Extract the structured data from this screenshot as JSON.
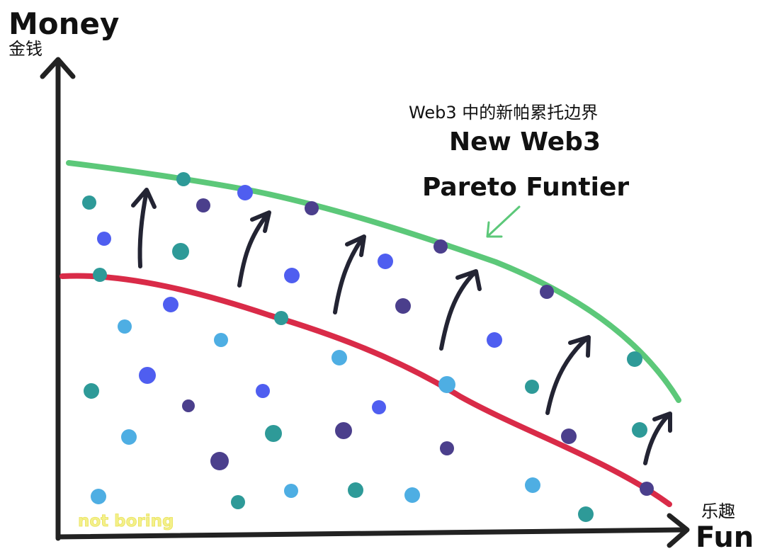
{
  "y_axis": {
    "label_en": "Money",
    "label_cn": "金钱"
  },
  "x_axis": {
    "label_en": "Fun",
    "label_cn": "乐趣"
  },
  "frontier_label": {
    "cn": "Web3 中的新帕累托边界",
    "en_line1": "New Web3",
    "en_line2": "Pareto Funtier"
  },
  "watermark": "not boring",
  "colors": {
    "new_frontier": "#5cc879",
    "old_frontier": "#d92b48",
    "axis": "#222222",
    "arrow": "#232433",
    "dot_teal": "#2e9a98",
    "dot_blue": "#4f5ef0",
    "dot_purple": "#4b3f8c",
    "dot_sky": "#4eaee3",
    "watermark": "#f4f08a"
  }
}
